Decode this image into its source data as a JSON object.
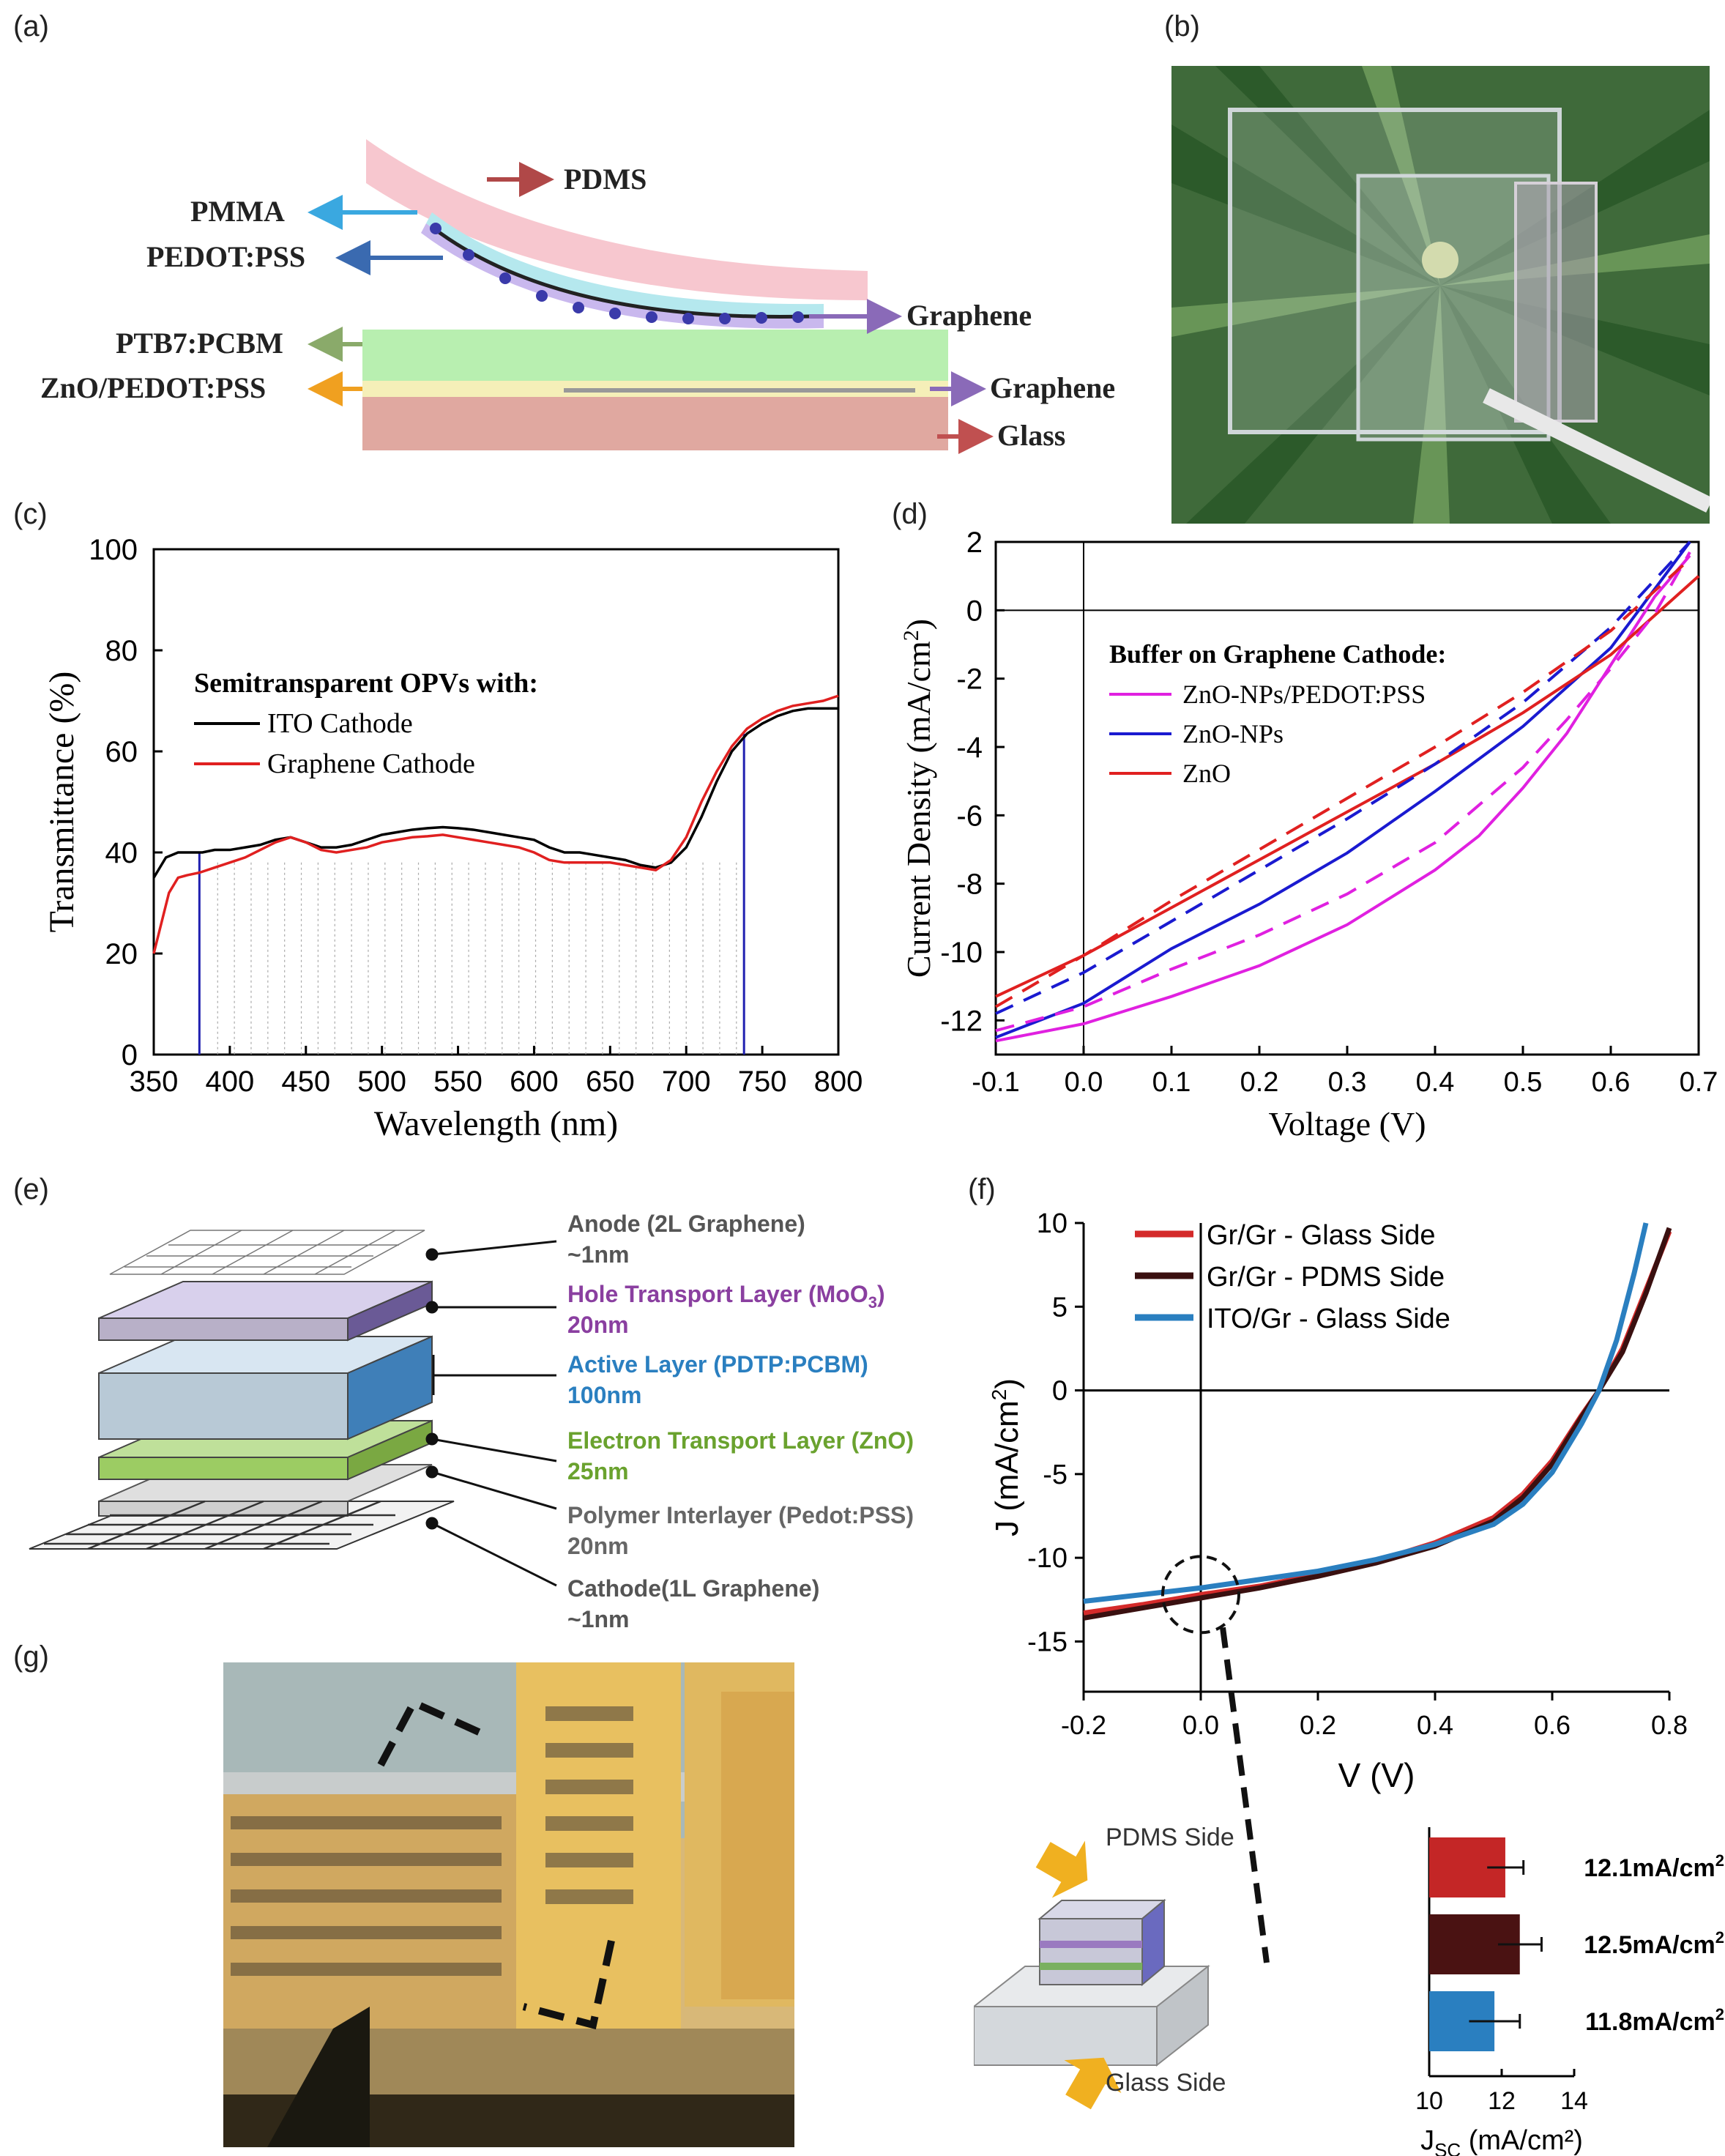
{
  "panel_labels": {
    "a": "(a)",
    "b": "(b)",
    "c": "(c)",
    "d": "(d)",
    "e": "(e)",
    "f": "(f)",
    "g": "(g)"
  },
  "panel_a": {
    "layers": [
      "PDMS",
      "PMMA",
      "PEDOT:PSS",
      "Graphene",
      "PTB7:PCBM",
      "ZnO/PEDOT:PSS",
      "Graphene",
      "Glass"
    ]
  },
  "panel_e": {
    "layers": [
      {
        "name": "Anode (2L Graphene)",
        "thickness": "~1nm",
        "color": "#555555"
      },
      {
        "name": "Hole Transport Layer (MoO",
        "sub": "3",
        "suffix": ")",
        "thickness": "20nm",
        "color": "#8a3fa0"
      },
      {
        "name": "Active Layer (PDTP:PCBM)",
        "thickness": "100nm",
        "color": "#2a7fc0"
      },
      {
        "name": "Electron Transport Layer (ZnO)",
        "thickness": "25nm",
        "color": "#6aa22e"
      },
      {
        "name": "Polymer Interlayer (Pedot:PSS)",
        "thickness": "20nm",
        "color": "#666666"
      },
      {
        "name": "Cathode(1L Graphene)",
        "thickness": "~1nm",
        "color": "#555555"
      }
    ]
  },
  "panel_f_inset": {
    "device_labels": [
      "PDMS Side",
      "Glass Side"
    ]
  },
  "chart_data": [
    {
      "id": "c",
      "type": "line",
      "xlabel": "Wavelength (nm)",
      "ylabel": "Transmittance (%)",
      "xlim": [
        350,
        800
      ],
      "ylim": [
        0,
        100
      ],
      "xticks": [
        350,
        400,
        450,
        500,
        550,
        600,
        650,
        700,
        750,
        800
      ],
      "yticks": [
        0,
        20,
        40,
        60,
        80,
        100
      ],
      "legend_title": "Semitransparent OPVs with:",
      "series": [
        {
          "name": "ITO Cathode",
          "color": "#000000",
          "x": [
            350,
            358,
            366,
            374,
            382,
            390,
            400,
            410,
            420,
            430,
            440,
            450,
            460,
            470,
            480,
            490,
            500,
            510,
            520,
            530,
            540,
            550,
            560,
            570,
            580,
            590,
            600,
            610,
            620,
            630,
            640,
            650,
            660,
            670,
            680,
            690,
            700,
            710,
            720,
            730,
            740,
            750,
            760,
            770,
            780,
            790,
            800
          ],
          "y": [
            35,
            39,
            40,
            40,
            40,
            40.5,
            40.5,
            41,
            41.5,
            42.5,
            43,
            42,
            41,
            41,
            41.5,
            42.5,
            43.5,
            44,
            44.5,
            44.8,
            45,
            44.8,
            44.5,
            44,
            43.5,
            43,
            42.5,
            41,
            40,
            40,
            39.5,
            39,
            38.5,
            37.5,
            37,
            38,
            41,
            47,
            54,
            60,
            63.5,
            65.5,
            67,
            68,
            68.5,
            68.5,
            68.5
          ]
        },
        {
          "name": "Graphene Cathode",
          "color": "#e02020",
          "x": [
            350,
            355,
            360,
            366,
            372,
            380,
            390,
            400,
            410,
            420,
            430,
            440,
            450,
            460,
            470,
            480,
            490,
            500,
            510,
            520,
            530,
            540,
            550,
            560,
            570,
            580,
            590,
            600,
            610,
            620,
            630,
            640,
            650,
            660,
            670,
            680,
            690,
            700,
            710,
            720,
            730,
            740,
            750,
            760,
            770,
            780,
            790,
            800
          ],
          "y": [
            20,
            26,
            32,
            35,
            35.5,
            36,
            37,
            38,
            39,
            40.5,
            42,
            43,
            42,
            40.5,
            40,
            40.5,
            41,
            42,
            42.5,
            43,
            43.2,
            43.5,
            43,
            42.5,
            42,
            41.5,
            41,
            40,
            38.5,
            38,
            38,
            38,
            38,
            37.5,
            37,
            36.5,
            38.5,
            43,
            50,
            56,
            61,
            64.5,
            66.5,
            68,
            69,
            69.5,
            70,
            71
          ]
        }
      ],
      "markers_nm": [
        380,
        738
      ]
    },
    {
      "id": "d",
      "type": "line",
      "xlabel": "Voltage (V)",
      "ylabel": "Current Density (mA/cm",
      "ylabel_sup": "2",
      "ylabel_end": ")",
      "xlim": [
        -0.1,
        0.7
      ],
      "ylim": [
        -13,
        2
      ],
      "xticks": [
        -0.1,
        0.0,
        0.1,
        0.2,
        0.3,
        0.4,
        0.5,
        0.6,
        0.7
      ],
      "yticks": [
        2,
        0,
        -2,
        -4,
        -6,
        -8,
        -10,
        -12
      ],
      "legend_title": "Buffer on Graphene Cathode:",
      "series": [
        {
          "name": "ZnO-NPs/PEDOT:PSS",
          "color": "#e020e0",
          "dash": false,
          "x": [
            -0.1,
            0,
            0.1,
            0.2,
            0.3,
            0.4,
            0.45,
            0.5,
            0.55,
            0.6,
            0.65,
            0.69
          ],
          "y": [
            -12.6,
            -12.1,
            -11.3,
            -10.4,
            -9.2,
            -7.6,
            -6.6,
            -5.2,
            -3.6,
            -1.6,
            0.4,
            1.6
          ]
        },
        {
          "name": "ZnO-NPs",
          "color": "#1a1ad0",
          "dash": false,
          "x": [
            -0.1,
            0,
            0.1,
            0.2,
            0.3,
            0.4,
            0.5,
            0.6,
            0.69
          ],
          "y": [
            -12.5,
            -11.5,
            -9.9,
            -8.6,
            -7.1,
            -5.3,
            -3.4,
            -1.1,
            2.0
          ]
        },
        {
          "name": "ZnO",
          "color": "#e02020",
          "dash": false,
          "x": [
            -0.1,
            0,
            0.1,
            0.2,
            0.3,
            0.4,
            0.5,
            0.6,
            0.7
          ],
          "y": [
            -11.3,
            -10.1,
            -8.7,
            -7.3,
            -5.9,
            -4.5,
            -3.0,
            -1.3,
            1.0
          ]
        },
        {
          "name": "ZnO-NPs/PEDOT:PSS (dashed)",
          "color": "#e020e0",
          "dash": true,
          "x": [
            -0.1,
            0,
            0.1,
            0.2,
            0.3,
            0.4,
            0.5,
            0.55,
            0.6,
            0.65,
            0.69
          ],
          "y": [
            -12.3,
            -11.6,
            -10.5,
            -9.5,
            -8.3,
            -6.8,
            -4.6,
            -3.2,
            -1.7,
            -0.1,
            1.7
          ]
        },
        {
          "name": "ZnO-NPs (dashed)",
          "color": "#1a1ad0",
          "dash": true,
          "x": [
            -0.1,
            0,
            0.1,
            0.2,
            0.3,
            0.4,
            0.5,
            0.6,
            0.69
          ],
          "y": [
            -11.8,
            -10.6,
            -9.1,
            -7.6,
            -6.1,
            -4.5,
            -2.7,
            -0.5,
            2.0
          ]
        },
        {
          "name": "ZnO (dashed)",
          "color": "#e02020",
          "dash": true,
          "x": [
            -0.1,
            0,
            0.1,
            0.2,
            0.3,
            0.4,
            0.5,
            0.6,
            0.69
          ],
          "y": [
            -11.6,
            -10.1,
            -8.5,
            -7.0,
            -5.5,
            -4.0,
            -2.4,
            -0.6,
            1.5
          ]
        }
      ],
      "legend_names": [
        "ZnO-NPs/PEDOT:PSS",
        "ZnO-NPs",
        "ZnO"
      ]
    },
    {
      "id": "f",
      "type": "line",
      "xlabel": "V (V)",
      "ylabel": "J (mA/cm",
      "ylabel_sup": "2",
      "ylabel_end": ")",
      "xlim": [
        -0.2,
        0.8
      ],
      "ylim": [
        -18,
        10
      ],
      "xticks": [
        -0.2,
        0.0,
        0.2,
        0.4,
        0.6,
        0.8
      ],
      "yticks": [
        10,
        5,
        0,
        -5,
        -10,
        -15
      ],
      "series": [
        {
          "name": "Gr/Gr - Glass Side",
          "color": "#d42a2a",
          "x": [
            -0.2,
            -0.1,
            0,
            0.1,
            0.2,
            0.3,
            0.4,
            0.5,
            0.55,
            0.6,
            0.65,
            0.68,
            0.72,
            0.76,
            0.8
          ],
          "y": [
            -13.3,
            -12.8,
            -12.2,
            -11.7,
            -11.0,
            -10.2,
            -9.1,
            -7.6,
            -6.2,
            -4.2,
            -1.5,
            0,
            2.5,
            6,
            9.5
          ]
        },
        {
          "name": "Gr/Gr - PDMS Side",
          "color": "#3a1010",
          "x": [
            -0.2,
            -0.1,
            0,
            0.1,
            0.2,
            0.3,
            0.4,
            0.5,
            0.55,
            0.6,
            0.65,
            0.68,
            0.72,
            0.76,
            0.8
          ],
          "y": [
            -13.6,
            -13.0,
            -12.4,
            -11.8,
            -11.1,
            -10.3,
            -9.3,
            -7.8,
            -6.4,
            -4.4,
            -1.6,
            0,
            2.3,
            5.8,
            9.7
          ]
        },
        {
          "name": "ITO/Gr - Glass Side",
          "color": "#2a7fc0",
          "x": [
            -0.2,
            -0.1,
            0,
            0.1,
            0.2,
            0.3,
            0.4,
            0.5,
            0.55,
            0.6,
            0.65,
            0.68,
            0.71,
            0.74,
            0.76
          ],
          "y": [
            -12.6,
            -12.2,
            -11.8,
            -11.3,
            -10.8,
            -10.1,
            -9.2,
            -8.0,
            -6.8,
            -4.9,
            -2.0,
            0,
            3,
            7,
            10
          ]
        }
      ]
    },
    {
      "id": "f_inset",
      "type": "bar",
      "xlabel": "J",
      "xlabel_sub": "SC",
      "xlabel_end": " (mA/cm²)",
      "xlim": [
        10,
        14
      ],
      "xticks": [
        10,
        12,
        14
      ],
      "bars": [
        {
          "value": 12.1,
          "err": 0.5,
          "color": "#c42626",
          "label": "12.1mA/cm",
          "sup": "2"
        },
        {
          "value": 12.5,
          "err": 0.6,
          "color": "#4a1212",
          "label": "12.5mA/cm",
          "sup": "2"
        },
        {
          "value": 11.8,
          "err": 0.7,
          "color": "#2a7fc0",
          "label": "11.8mA/cm",
          "sup": "2"
        }
      ]
    }
  ]
}
